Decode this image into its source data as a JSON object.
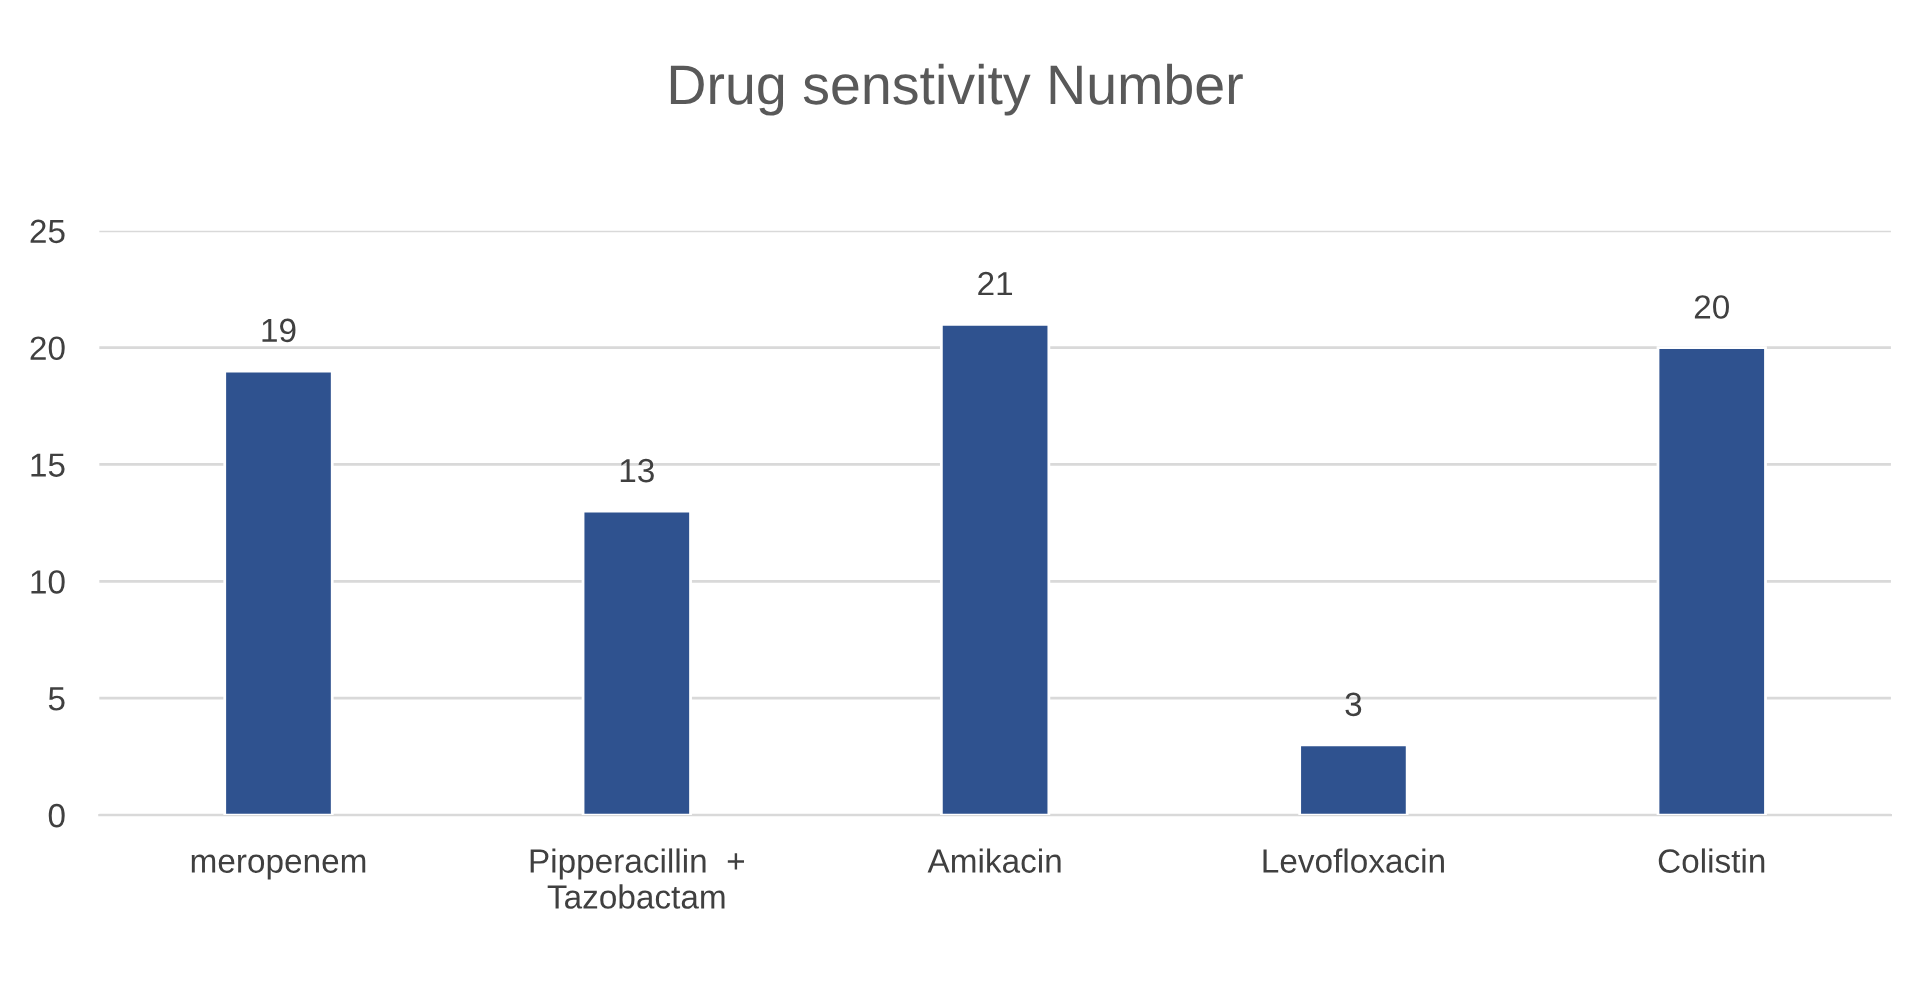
{
  "chart_data": {
    "type": "bar",
    "title": "Drug senstivity Number",
    "categories": [
      "meropenem",
      "Pipperacillin  +\nTazobactam",
      "Amikacin",
      "Levofloxacin",
      "Colistin"
    ],
    "values": [
      19,
      13,
      21,
      3,
      20
    ],
    "color": "#2f528f",
    "ylim": [
      0,
      25
    ],
    "yticks": [
      0,
      5,
      10,
      15,
      20,
      25
    ],
    "grid": "y",
    "data_labels": true
  }
}
